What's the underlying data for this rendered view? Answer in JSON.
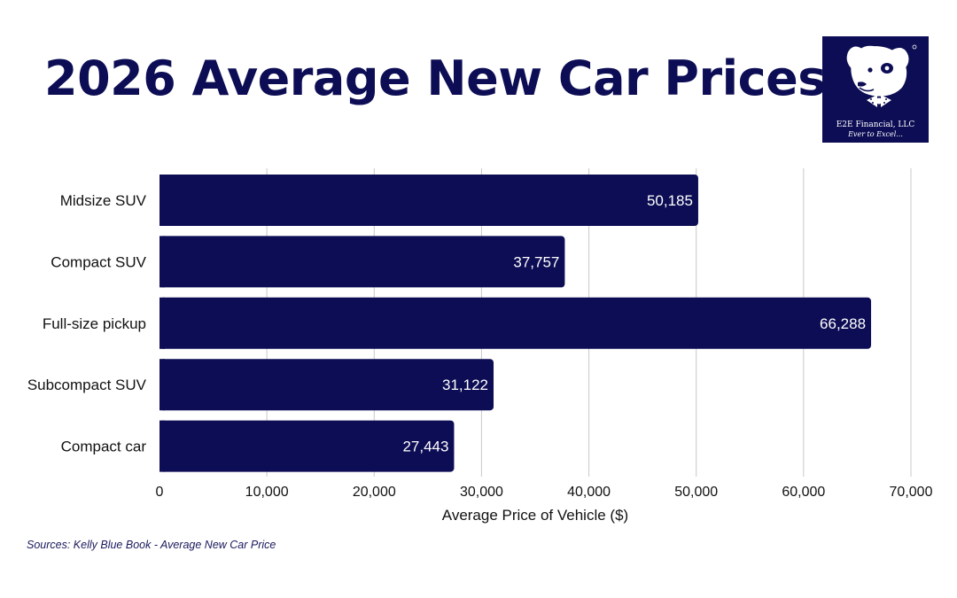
{
  "title": "2026 Average New Car Prices",
  "logo": {
    "name": "E2E Financial, LLC",
    "tagline": "Ever to Excel...",
    "icon": "dog-with-bowtie-icon"
  },
  "source": "Sources: Kelly Blue Book - Average New Car Price",
  "colors": {
    "title": "#0d0d55",
    "bar": "#0d0d55",
    "bar_label": "#ffffff",
    "grid": "#c8c8c8",
    "text": "#111111"
  },
  "chart_data": {
    "type": "bar",
    "orientation": "horizontal",
    "categories": [
      "Midsize SUV",
      "Compact SUV",
      "Full-size pickup",
      "Subcompact SUV",
      "Compact car"
    ],
    "values": [
      50185,
      37757,
      66288,
      31122,
      27443
    ],
    "data_labels": [
      "50,185",
      "37,757",
      "66,288",
      "31,122",
      "27,443"
    ],
    "xlabel": "Average Price of Vehicle ($)",
    "ylabel": "",
    "xlim": [
      0,
      70000
    ],
    "xticks": [
      0,
      10000,
      20000,
      30000,
      40000,
      50000,
      60000,
      70000
    ],
    "xtick_labels": [
      "0",
      "10,000",
      "20,000",
      "30,000",
      "40,000",
      "50,000",
      "60,000",
      "70,000"
    ],
    "grid": "vertical",
    "legend": "none"
  }
}
